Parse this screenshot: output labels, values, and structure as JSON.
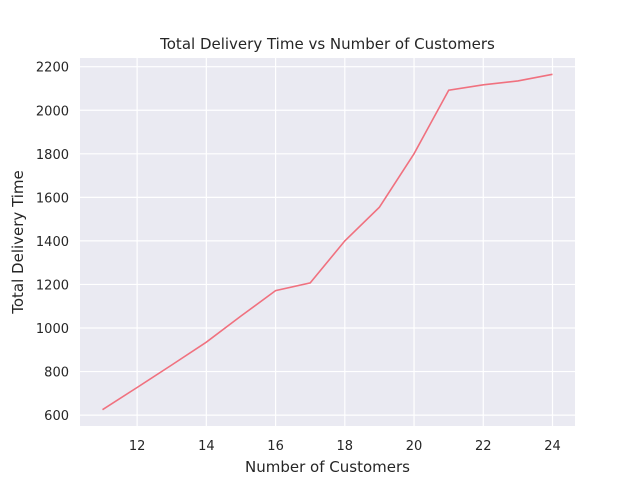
{
  "chart_data": {
    "type": "line",
    "title": "Total Delivery Time vs Number of Customers",
    "xlabel": "Number of Customers",
    "ylabel": "Total Delivery Time",
    "xlim": [
      10.35,
      24.65
    ],
    "ylim": [
      550,
      2240
    ],
    "xticks": [
      12,
      14,
      16,
      18,
      20,
      22,
      24
    ],
    "yticks": [
      600,
      800,
      1000,
      1200,
      1400,
      1600,
      1800,
      2000,
      2200
    ],
    "grid": true,
    "colors": {
      "background": "#eaeaf2",
      "grid": "#ffffff",
      "line": "#f0717f"
    },
    "series": [
      {
        "x": [
          11,
          12,
          13,
          14,
          15,
          16,
          17,
          18,
          19,
          20,
          21,
          22,
          23,
          24
        ],
        "y": [
          625,
          727,
          830,
          935,
          1055,
          1172,
          1207,
          1400,
          1555,
          1800,
          2092,
          2117,
          2135,
          2165
        ]
      }
    ]
  }
}
